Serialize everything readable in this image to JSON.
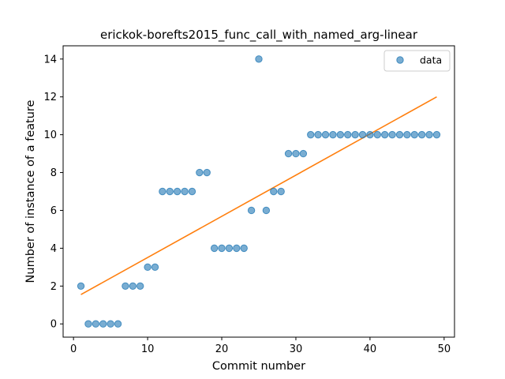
{
  "chart_data": {
    "type": "scatter",
    "title": "erickok-borefts2015_func_call_with_named_arg-linear",
    "xlabel": "Commit number",
    "ylabel": "Number of instance of a feature",
    "xlim": [
      -1.4,
      51.4
    ],
    "ylim": [
      -0.7,
      14.7
    ],
    "xticks": [
      0,
      10,
      20,
      30,
      40,
      50
    ],
    "yticks": [
      0,
      2,
      4,
      6,
      8,
      10,
      12,
      14
    ],
    "grid": false,
    "legend": {
      "position": "top-right",
      "entries": [
        "data"
      ]
    },
    "series": [
      {
        "name": "data",
        "kind": "scatter",
        "color": "#1f77b4",
        "x": [
          1,
          2,
          3,
          4,
          5,
          6,
          7,
          8,
          9,
          10,
          11,
          12,
          13,
          14,
          15,
          16,
          17,
          18,
          19,
          20,
          21,
          22,
          23,
          24,
          25,
          26,
          27,
          28,
          29,
          30,
          31,
          32,
          33,
          34,
          35,
          36,
          37,
          38,
          39,
          40,
          41,
          42,
          43,
          44,
          45,
          46,
          47,
          48,
          49
        ],
        "y": [
          2,
          0,
          0,
          0,
          0,
          0,
          2,
          2,
          2,
          3,
          3,
          7,
          7,
          7,
          7,
          7,
          8,
          8,
          4,
          4,
          4,
          4,
          4,
          6,
          14,
          6,
          7,
          7,
          9,
          9,
          9,
          10,
          10,
          10,
          10,
          10,
          10,
          10,
          10,
          10,
          10,
          10,
          10,
          10,
          10,
          10,
          10,
          10,
          10
        ]
      },
      {
        "kind": "line",
        "color": "#ff7f0e",
        "x": [
          1,
          49
        ],
        "y": [
          1.55,
          12.0
        ]
      }
    ]
  }
}
